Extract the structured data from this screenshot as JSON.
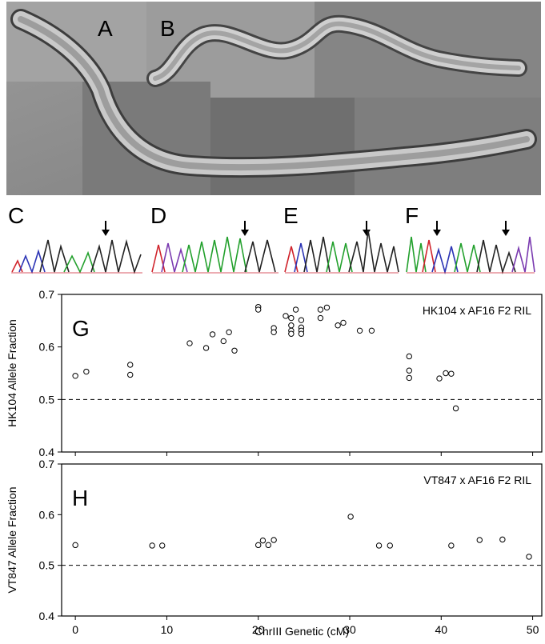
{
  "figure": {
    "panel_labels": {
      "A": "A",
      "B": "B",
      "C": "C",
      "D": "D",
      "E": "E",
      "F": "F",
      "G": "G",
      "H": "H"
    }
  },
  "chromatograms": [
    {
      "label": "C",
      "arrows": 1
    },
    {
      "label": "D",
      "arrows": 1
    },
    {
      "label": "E",
      "arrows": 1
    },
    {
      "label": "F",
      "arrows": 2
    }
  ],
  "chart_data": [
    {
      "type": "scatter",
      "panel": "G",
      "title": "HK104 x AF16 F2 RIL",
      "ylabel": "HK104 Allele Fraction",
      "xlabel": "",
      "xlim": [
        -1.5,
        51
      ],
      "ylim": [
        0.4,
        0.7
      ],
      "yticks": [
        "0.4",
        "0.5",
        "0.6",
        "0.7"
      ],
      "reference_line": 0.5,
      "points": [
        [
          0,
          0.545
        ],
        [
          1.2,
          0.553
        ],
        [
          6,
          0.566
        ],
        [
          6,
          0.547
        ],
        [
          12.5,
          0.607
        ],
        [
          14.3,
          0.598
        ],
        [
          15,
          0.624
        ],
        [
          16.2,
          0.611
        ],
        [
          16.8,
          0.628
        ],
        [
          17.4,
          0.593
        ],
        [
          20,
          0.676
        ],
        [
          20,
          0.671
        ],
        [
          21.7,
          0.636
        ],
        [
          21.7,
          0.628
        ],
        [
          23,
          0.659
        ],
        [
          23.6,
          0.655
        ],
        [
          23.6,
          0.641
        ],
        [
          23.6,
          0.631
        ],
        [
          23.6,
          0.625
        ],
        [
          24.1,
          0.671
        ],
        [
          24.7,
          0.651
        ],
        [
          24.7,
          0.637
        ],
        [
          24.7,
          0.631
        ],
        [
          24.7,
          0.625
        ],
        [
          26.8,
          0.671
        ],
        [
          26.8,
          0.655
        ],
        [
          27.5,
          0.675
        ],
        [
          28.7,
          0.641
        ],
        [
          29.3,
          0.646
        ],
        [
          31.1,
          0.631
        ],
        [
          32.4,
          0.631
        ],
        [
          36.5,
          0.582
        ],
        [
          36.5,
          0.555
        ],
        [
          36.5,
          0.541
        ],
        [
          39.8,
          0.54
        ],
        [
          40.5,
          0.55
        ],
        [
          41.1,
          0.549
        ],
        [
          41.6,
          0.483
        ]
      ]
    },
    {
      "type": "scatter",
      "panel": "H",
      "title": "VT847 x AF16 F2 RIL",
      "ylabel": "VT847 Allele Fraction",
      "xlabel": "ChrIII Genetic (cM)",
      "xlim": [
        -1.5,
        51
      ],
      "ylim": [
        0.4,
        0.7
      ],
      "yticks": [
        "0.4",
        "0.5",
        "0.6",
        "0.7"
      ],
      "xticks": [
        "0",
        "10",
        "20",
        "30",
        "40",
        "50"
      ],
      "reference_line": 0.5,
      "points": [
        [
          0,
          0.54
        ],
        [
          8.4,
          0.539
        ],
        [
          9.5,
          0.539
        ],
        [
          20,
          0.54
        ],
        [
          20.5,
          0.549
        ],
        [
          21.1,
          0.54
        ],
        [
          21.7,
          0.55
        ],
        [
          30.1,
          0.596
        ],
        [
          33.2,
          0.539
        ],
        [
          34.4,
          0.539
        ],
        [
          41.1,
          0.539
        ],
        [
          44.2,
          0.55
        ],
        [
          46.7,
          0.551
        ],
        [
          49.6,
          0.517
        ]
      ]
    }
  ]
}
